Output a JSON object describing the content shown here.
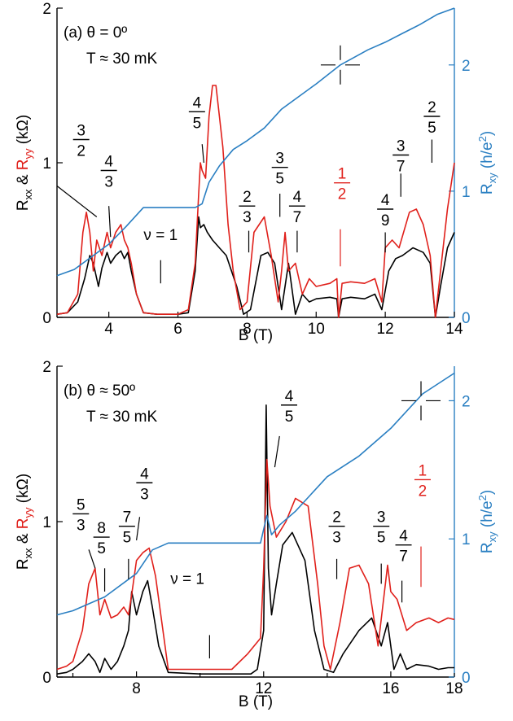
{
  "colors": {
    "rxx": "#000000",
    "ryy": "#e0201b",
    "rxy": "#2a7fc2",
    "axis": "#000000",
    "hall_axis": "#2a7fc2"
  },
  "chart_data": [
    {
      "type": "line",
      "panel_label": "(a) θ = 0º",
      "temperature": "T ≈ 30 mK",
      "xlabel": "B (T)",
      "ylabel_left": {
        "a": "R",
        "a_sub": "xx",
        "amp": " & ",
        "b": "R",
        "b_sub": "yy",
        "unit": " (kΩ)"
      },
      "ylabel_right": {
        "a": "R",
        "a_sub": "xy",
        "unit": " (h/e",
        "sup": "2",
        "close": ")"
      },
      "xlim": [
        2.5,
        14
      ],
      "ylim_left": [
        0,
        2
      ],
      "ylim_right": [
        0,
        2.45
      ],
      "xticks": [
        4,
        6,
        8,
        10,
        12,
        14
      ],
      "xtick_labels": [
        "4",
        "6",
        "8",
        "10",
        "12",
        "14"
      ],
      "yticks_left": [
        0,
        1,
        2
      ],
      "ytick_labels_left": [
        "0",
        "1",
        "2"
      ],
      "yticks_right": [
        0,
        1,
        2
      ],
      "ytick_labels_right": [
        "0",
        "1",
        "2"
      ],
      "series": [
        {
          "key": "rxx",
          "axis": "left",
          "x": [
            2.5,
            2.8,
            3.1,
            3.3,
            3.45,
            3.55,
            3.7,
            3.8,
            3.95,
            4.05,
            4.2,
            4.35,
            4.45,
            4.55,
            4.65,
            4.8,
            5.0,
            5.4,
            6.0,
            6.3,
            6.5,
            6.6,
            6.65,
            6.75,
            6.85,
            7.0,
            7.2,
            7.4,
            7.55,
            7.7,
            7.9,
            8.1,
            8.4,
            8.6,
            8.8,
            8.9,
            9.0,
            9.2,
            9.4,
            9.6,
            9.8,
            10.0,
            10.4,
            10.6,
            10.65,
            10.75,
            11.0,
            11.4,
            11.7,
            11.9,
            12.1,
            12.3,
            12.5,
            12.8,
            13.1,
            13.3,
            13.45,
            13.6,
            13.8,
            14.0
          ],
          "y": [
            0.02,
            0.03,
            0.1,
            0.25,
            0.4,
            0.35,
            0.2,
            0.32,
            0.42,
            0.35,
            0.4,
            0.43,
            0.38,
            0.42,
            0.3,
            0.15,
            0.03,
            0.02,
            0.02,
            0.03,
            0.3,
            0.65,
            0.58,
            0.6,
            0.55,
            0.5,
            0.45,
            0.4,
            0.3,
            0.2,
            0.02,
            0.05,
            0.4,
            0.42,
            0.35,
            0.2,
            0.05,
            0.35,
            0.02,
            0.15,
            0.1,
            0.12,
            0.13,
            0.12,
            0.0,
            0.12,
            0.13,
            0.12,
            0.15,
            0.05,
            0.3,
            0.38,
            0.4,
            0.45,
            0.42,
            0.35,
            0.0,
            0.2,
            0.45,
            0.55
          ]
        },
        {
          "key": "ryy",
          "axis": "left",
          "x": [
            2.5,
            2.8,
            3.1,
            3.25,
            3.35,
            3.45,
            3.55,
            3.65,
            3.8,
            3.95,
            4.05,
            4.2,
            4.35,
            4.45,
            4.55,
            4.65,
            4.8,
            5.0,
            5.4,
            6.0,
            6.3,
            6.5,
            6.6,
            6.65,
            6.7,
            6.8,
            6.9,
            7.0,
            7.1,
            7.3,
            7.45,
            7.6,
            7.8,
            8.0,
            8.2,
            8.5,
            8.7,
            8.9,
            9.0,
            9.1,
            9.2,
            9.4,
            9.6,
            9.8,
            10.0,
            10.4,
            10.6,
            10.65,
            10.75,
            11.0,
            11.4,
            11.7,
            11.9,
            12.0,
            12.2,
            12.4,
            12.7,
            12.9,
            13.1,
            13.3,
            13.45,
            13.6,
            13.8,
            14.0
          ],
          "y": [
            0.02,
            0.03,
            0.15,
            0.55,
            0.68,
            0.55,
            0.3,
            0.5,
            0.4,
            0.55,
            0.45,
            0.55,
            0.6,
            0.5,
            0.45,
            0.35,
            0.15,
            0.03,
            0.02,
            0.02,
            0.05,
            0.35,
            0.8,
            1.0,
            0.95,
            0.9,
            1.3,
            1.5,
            1.5,
            1.1,
            0.6,
            0.3,
            0.05,
            0.1,
            0.55,
            0.65,
            0.4,
            0.1,
            0.3,
            0.55,
            0.3,
            0.35,
            0.15,
            0.25,
            0.2,
            0.22,
            0.25,
            0.0,
            0.22,
            0.23,
            0.22,
            0.25,
            0.1,
            0.45,
            0.5,
            0.45,
            0.68,
            0.7,
            0.6,
            0.4,
            0.0,
            0.3,
            0.7,
            1.0
          ]
        },
        {
          "key": "rxy",
          "axis": "right",
          "x": [
            2.5,
            3.0,
            3.5,
            4.0,
            4.5,
            5.0,
            5.5,
            6.0,
            6.5,
            6.7,
            6.9,
            7.2,
            7.6,
            8.0,
            8.5,
            9.0,
            9.5,
            10.0,
            10.7,
            11.5,
            12.0,
            12.5,
            13.0,
            13.5,
            14.0
          ],
          "y": [
            0.33,
            0.38,
            0.48,
            0.58,
            0.72,
            0.87,
            0.87,
            0.87,
            0.87,
            0.9,
            1.07,
            1.2,
            1.33,
            1.4,
            1.5,
            1.65,
            1.75,
            1.85,
            2.0,
            2.12,
            2.18,
            2.25,
            2.32,
            2.4,
            2.45
          ]
        }
      ],
      "fraction_labels": [
        {
          "num": "3",
          "den": "2",
          "x": 3.2,
          "y": 1.15,
          "color": "black",
          "tick_x": [
            2.5,
            3.65
          ],
          "tick_y": [
            0.85,
            0.65
          ]
        },
        {
          "num": "4",
          "den": "3",
          "x": 4.0,
          "y": 0.95,
          "color": "black",
          "tick_x": [
            4.0,
            4.05
          ],
          "tick_y": [
            0.72,
            0.52
          ]
        },
        {
          "num": "4",
          "den": "5",
          "x": 6.55,
          "y": 1.33,
          "color": "black",
          "tick_x": [
            6.7,
            6.75
          ],
          "tick_y": [
            1.12,
            1.0
          ]
        },
        {
          "num": "2",
          "den": "3",
          "x": 8.0,
          "y": 0.72,
          "color": "black",
          "tick_x": [
            8.05,
            8.05
          ],
          "tick_y": [
            0.42,
            0.56
          ]
        },
        {
          "num": "3",
          "den": "5",
          "x": 8.95,
          "y": 0.97,
          "color": "black",
          "tick_x": [
            8.95,
            8.95
          ],
          "tick_y": [
            0.65,
            0.8
          ]
        },
        {
          "num": "4",
          "den": "7",
          "x": 9.45,
          "y": 0.72,
          "color": "black",
          "tick_x": [
            9.45,
            9.45
          ],
          "tick_y": [
            0.42,
            0.56
          ]
        },
        {
          "num": "1",
          "den": "2",
          "x": 10.75,
          "y": 0.87,
          "color": "red",
          "tick_x": [
            10.7,
            10.7
          ],
          "tick_y": [
            0.33,
            0.57
          ]
        },
        {
          "num": "4",
          "den": "9",
          "x": 12.0,
          "y": 0.7,
          "color": "black",
          "tick_x": [
            12.0,
            12.0
          ],
          "tick_y": [
            0.42,
            0.55
          ]
        },
        {
          "num": "3",
          "den": "7",
          "x": 12.45,
          "y": 1.05,
          "color": "black",
          "tick_x": [
            12.45,
            12.45
          ],
          "tick_y": [
            0.78,
            0.93
          ]
        },
        {
          "num": "2",
          "den": "5",
          "x": 13.35,
          "y": 1.3,
          "color": "black",
          "tick_x": [
            13.35,
            13.35
          ],
          "tick_y": [
            1.0,
            1.15
          ]
        }
      ],
      "nu_label": {
        "text": "ν = 1",
        "x": 5.5,
        "y": 0.5,
        "tick_x": [
          5.5,
          5.5
        ],
        "tick_y": [
          0.22,
          0.37
        ]
      },
      "crosshair": {
        "x": 10.7,
        "y_right": 2.0
      }
    },
    {
      "type": "line",
      "panel_label": "(b) θ ≈ 50º",
      "temperature": "T ≈ 30 mK",
      "xlabel": "B (T)",
      "ylabel_left": {
        "a": "R",
        "a_sub": "xx",
        "amp": " & ",
        "b": "R",
        "b_sub": "yy",
        "unit": " (kΩ)"
      },
      "ylabel_right": {
        "a": "R",
        "a_sub": "xy",
        "unit": " (h/e",
        "sup": "2",
        "close": ")"
      },
      "xlim": [
        5.5,
        18
      ],
      "ylim_left": [
        0,
        2
      ],
      "ylim_right": [
        0,
        2.25
      ],
      "xticks": [
        8,
        12,
        16
      ],
      "xtick_labels": [
        "8",
        "12",
        "16"
      ],
      "xticks_minor": [
        6,
        10,
        14,
        18
      ],
      "xtick_minor_labels": [
        "",
        "",
        "",
        "18"
      ],
      "yticks_left": [
        0,
        1,
        2
      ],
      "ytick_labels_left": [
        "0",
        "1",
        "2"
      ],
      "yticks_right": [
        0,
        1,
        2
      ],
      "ytick_labels_right": [
        "0",
        "1",
        "2"
      ],
      "series": [
        {
          "key": "rxx",
          "axis": "left",
          "x": [
            5.5,
            5.8,
            6.0,
            6.3,
            6.5,
            6.7,
            6.85,
            7.0,
            7.2,
            7.4,
            7.6,
            7.75,
            7.85,
            8.0,
            8.2,
            8.35,
            8.5,
            8.7,
            9.0,
            10.0,
            11.0,
            11.6,
            11.8,
            12.0,
            12.08,
            12.15,
            12.25,
            12.4,
            12.6,
            12.9,
            13.3,
            13.6,
            13.9,
            14.2,
            14.5,
            15.0,
            15.4,
            15.7,
            15.9,
            16.1,
            16.3,
            16.5,
            16.8,
            17.2,
            17.5,
            17.8,
            18.0
          ],
          "y": [
            0.02,
            0.03,
            0.05,
            0.1,
            0.15,
            0.1,
            0.03,
            0.12,
            0.05,
            0.1,
            0.2,
            0.3,
            0.55,
            0.4,
            0.55,
            0.62,
            0.45,
            0.2,
            0.03,
            0.02,
            0.02,
            0.02,
            0.05,
            0.3,
            1.75,
            0.7,
            0.4,
            0.6,
            0.85,
            0.93,
            0.75,
            0.3,
            0.05,
            0.03,
            0.15,
            0.3,
            0.38,
            0.2,
            0.35,
            0.05,
            0.15,
            0.05,
            0.08,
            0.07,
            0.05,
            0.06,
            0.06
          ]
        },
        {
          "key": "ryy",
          "axis": "left",
          "x": [
            5.5,
            5.8,
            6.0,
            6.3,
            6.5,
            6.7,
            6.85,
            7.0,
            7.2,
            7.4,
            7.6,
            7.75,
            7.85,
            8.0,
            8.2,
            8.4,
            8.6,
            9.0,
            10.0,
            11.0,
            11.5,
            11.9,
            12.0,
            12.1,
            12.2,
            12.4,
            12.7,
            13.0,
            13.4,
            13.7,
            13.9,
            14.1,
            14.4,
            14.7,
            15.0,
            15.3,
            15.6,
            15.9,
            16.0,
            16.2,
            16.5,
            16.8,
            17.2,
            17.5,
            17.8,
            18.0
          ],
          "y": [
            0.05,
            0.07,
            0.1,
            0.3,
            0.6,
            0.7,
            0.4,
            0.5,
            0.38,
            0.4,
            0.45,
            0.4,
            0.53,
            0.75,
            0.8,
            0.83,
            0.65,
            0.05,
            0.05,
            0.05,
            0.15,
            0.25,
            0.7,
            1.4,
            1.1,
            0.9,
            1.0,
            1.15,
            1.1,
            0.6,
            0.2,
            0.05,
            0.35,
            0.7,
            0.72,
            0.6,
            0.2,
            0.72,
            0.55,
            0.5,
            0.3,
            0.35,
            0.38,
            0.35,
            0.38,
            0.37
          ]
        },
        {
          "key": "rxy",
          "axis": "right",
          "x": [
            5.5,
            6.0,
            7.0,
            8.0,
            8.5,
            9.0,
            10.0,
            11.0,
            11.9,
            12.0,
            12.1,
            12.25,
            12.5,
            13.0,
            14.0,
            15.0,
            16.0,
            17.0,
            18.0
          ],
          "y": [
            0.45,
            0.48,
            0.58,
            0.75,
            0.92,
            0.97,
            0.97,
            0.97,
            0.97,
            1.07,
            1.17,
            1.03,
            1.1,
            1.2,
            1.45,
            1.6,
            1.8,
            2.05,
            2.2
          ]
        }
      ],
      "fraction_labels": [
        {
          "num": "5",
          "den": "3",
          "x": 6.25,
          "y": 1.05,
          "color": "black",
          "tick_x": [
            6.5,
            6.7
          ],
          "tick_y": [
            0.82,
            0.7
          ]
        },
        {
          "num": "8",
          "den": "5",
          "x": 6.9,
          "y": 0.9,
          "color": "black",
          "tick_x": [
            7.0,
            7.0
          ],
          "tick_y": [
            0.7,
            0.55
          ]
        },
        {
          "num": "7",
          "den": "5",
          "x": 7.7,
          "y": 0.97,
          "color": "black",
          "tick_x": [
            7.75,
            7.75
          ],
          "tick_y": [
            0.76,
            0.63
          ]
        },
        {
          "num": "4",
          "den": "3",
          "x": 8.25,
          "y": 1.25,
          "color": "black",
          "tick_x": [
            8.1,
            8.0
          ],
          "tick_y": [
            1.03,
            0.88
          ]
        },
        {
          "num": "4",
          "den": "5",
          "x": 12.8,
          "y": 1.75,
          "color": "black",
          "tick_x": [
            12.5,
            12.35
          ],
          "tick_y": [
            1.55,
            1.35
          ]
        },
        {
          "num": "2",
          "den": "3",
          "x": 14.3,
          "y": 0.97,
          "color": "black",
          "tick_x": [
            14.3,
            14.3
          ],
          "tick_y": [
            0.63,
            0.76
          ]
        },
        {
          "num": "3",
          "den": "5",
          "x": 15.7,
          "y": 0.97,
          "color": "black",
          "tick_x": [
            15.7,
            15.7
          ],
          "tick_y": [
            0.6,
            0.73
          ]
        },
        {
          "num": "4",
          "den": "7",
          "x": 16.4,
          "y": 0.85,
          "color": "black",
          "tick_x": [
            16.35,
            16.35
          ],
          "tick_y": [
            0.48,
            0.62
          ]
        },
        {
          "num": "1",
          "den": "2",
          "x": 17.0,
          "y": 1.27,
          "color": "red",
          "tick_x": [
            16.95,
            16.95
          ],
          "tick_y": [
            0.58,
            0.84
          ]
        }
      ],
      "nu_label": {
        "text": "ν = 1",
        "x": 9.6,
        "y": 0.6,
        "tick_x": [
          10.3,
          10.3
        ],
        "tick_y": [
          0.12,
          0.27
        ]
      },
      "crosshair": {
        "x": 16.95,
        "y_right": 2.0
      }
    }
  ]
}
